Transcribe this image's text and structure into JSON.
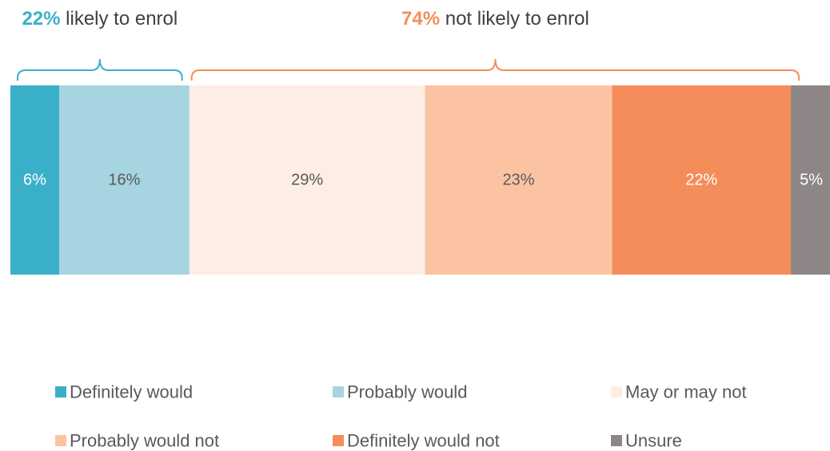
{
  "chart_data": {
    "type": "bar",
    "stacked": true,
    "orientation": "horizontal",
    "unit": "%",
    "series": [
      {
        "name": "Definitely would",
        "value": 6,
        "label": "6%",
        "color": "#3AB0C8",
        "label_color": "#ffffff"
      },
      {
        "name": "Probably would",
        "value": 16,
        "label": "16%",
        "color": "#A6D4E0",
        "label_color": "#595959"
      },
      {
        "name": "May or may not",
        "value": 29,
        "label": "29%",
        "color": "#FDEEE5",
        "label_color": "#595959"
      },
      {
        "name": "Probably would not",
        "value": 23,
        "label": "23%",
        "color": "#FBC3A2",
        "label_color": "#595959"
      },
      {
        "name": "Definitely would not",
        "value": 22,
        "label": "22%",
        "color": "#F58D5A",
        "label_color": "#ffffff"
      },
      {
        "name": "Unsure",
        "value": 5,
        "label": "5%",
        "color": "#8E8686",
        "label_color": "#ffffff"
      }
    ],
    "groups": [
      {
        "value": "22%",
        "text": "likely to enrol",
        "color": "#3AB0C8",
        "first_segment": 0,
        "last_segment": 1
      },
      {
        "value": "74%",
        "text": "not likely to enrol",
        "color": "#F58D5A",
        "first_segment": 2,
        "last_segment": 4
      }
    ],
    "legend": {
      "position": "bottom",
      "columns": 3
    },
    "grid": false
  }
}
